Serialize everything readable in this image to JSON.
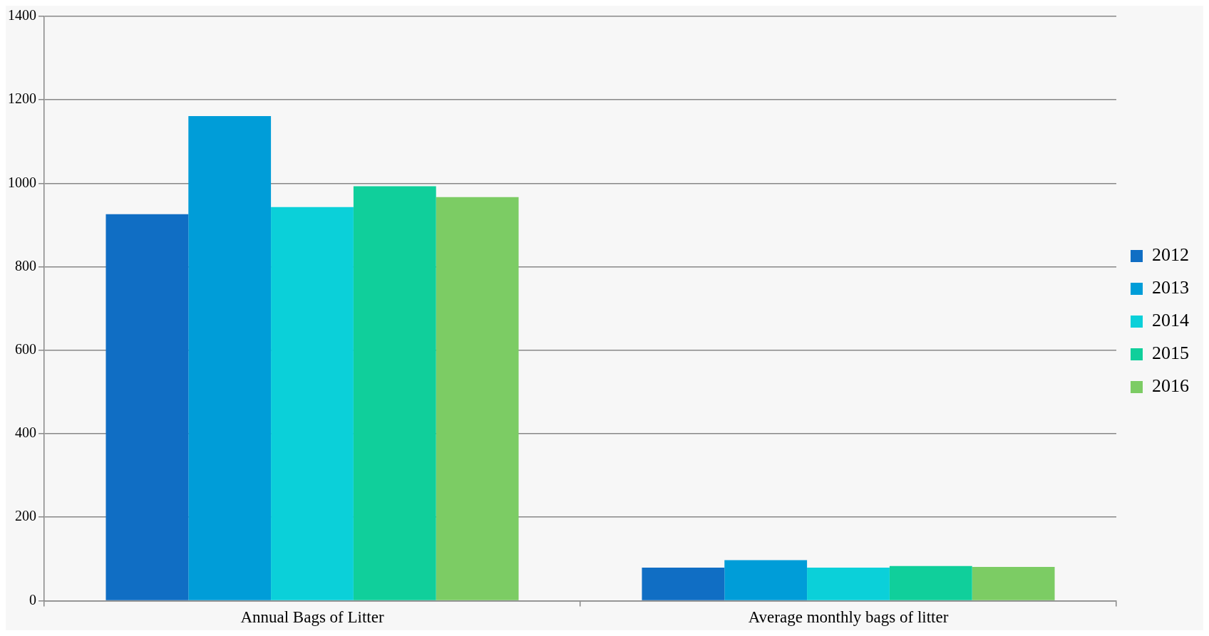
{
  "chart_data": {
    "type": "bar",
    "categories": [
      "Annual Bags of Litter",
      "Average monthly bags of litter"
    ],
    "series": [
      {
        "name": "2012",
        "color": "#106ec4",
        "values": [
          926,
          79
        ]
      },
      {
        "name": "2013",
        "color": "#009dd8",
        "values": [
          1161,
          97
        ]
      },
      {
        "name": "2014",
        "color": "#0bd0d9",
        "values": [
          943,
          79
        ]
      },
      {
        "name": "2015",
        "color": "#10cf9b",
        "values": [
          993,
          83
        ]
      },
      {
        "name": "2016",
        "color": "#7ccc64",
        "values": [
          967,
          81
        ]
      }
    ],
    "ylim": [
      0,
      1400
    ],
    "yticks": [
      0,
      200,
      400,
      600,
      800,
      1000,
      1200,
      1400
    ],
    "grid": "y",
    "legend": "right"
  }
}
